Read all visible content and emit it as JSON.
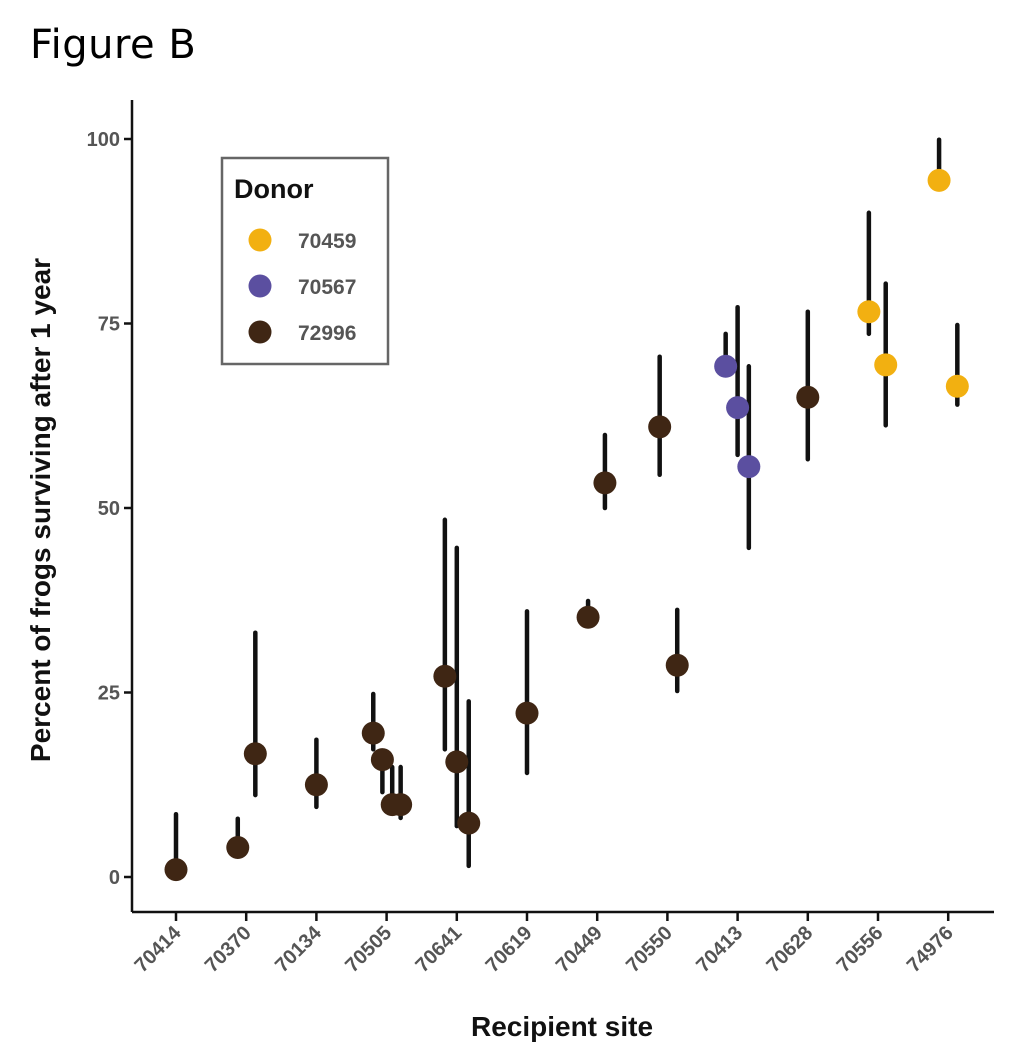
{
  "figure_title": "Figure B",
  "colors": {
    "70459": "#F2B011",
    "70567": "#5B4FA0",
    "72996": "#3F2614",
    "errorbar": "#111111",
    "axis": "#111111"
  },
  "chart_data": {
    "type": "scatter",
    "title": "Figure B",
    "xlabel": "Recipient site",
    "ylabel": "Percent of frogs surviving after 1 year",
    "categories": [
      "70414",
      "70370",
      "70134",
      "70505",
      "70641",
      "70619",
      "70449",
      "70550",
      "70413",
      "70628",
      "70556",
      "74976"
    ],
    "ylim": [
      -5,
      105
    ],
    "yticks": [
      0,
      25,
      50,
      75,
      100
    ],
    "grid": false,
    "legend": {
      "title": "Donor",
      "placement": "top-left",
      "entries": [
        "70459",
        "70567",
        "72996"
      ]
    },
    "points": [
      {
        "site": "70414",
        "offset": 0.0,
        "donor": "72996",
        "value": 1.0,
        "low": 1.0,
        "high": 8.5
      },
      {
        "site": "70370",
        "offset": -0.12,
        "donor": "72996",
        "value": 4.0,
        "low": 4.0,
        "high": 7.9
      },
      {
        "site": "70370",
        "offset": 0.13,
        "donor": "72996",
        "value": 16.7,
        "low": 11.1,
        "high": 33.1
      },
      {
        "site": "70134",
        "offset": 0.0,
        "donor": "72996",
        "value": 12.5,
        "low": 9.5,
        "high": 18.6
      },
      {
        "site": "70505",
        "offset": -0.19,
        "donor": "72996",
        "value": 19.5,
        "low": 17.3,
        "high": 24.8
      },
      {
        "site": "70505",
        "offset": -0.06,
        "donor": "72996",
        "value": 15.9,
        "low": 11.5,
        "high": 15.9
      },
      {
        "site": "70505",
        "offset": 0.08,
        "donor": "72996",
        "value": 9.8,
        "low": 9.8,
        "high": 14.9
      },
      {
        "site": "70505",
        "offset": 0.2,
        "donor": "72996",
        "value": 9.8,
        "low": 8.0,
        "high": 14.9
      },
      {
        "site": "70641",
        "offset": -0.17,
        "donor": "72996",
        "value": 27.2,
        "low": 17.3,
        "high": 48.4
      },
      {
        "site": "70641",
        "offset": 0.0,
        "donor": "72996",
        "value": 15.6,
        "low": 6.9,
        "high": 44.6
      },
      {
        "site": "70641",
        "offset": 0.17,
        "donor": "72996",
        "value": 7.3,
        "low": 1.5,
        "high": 23.8
      },
      {
        "site": "70619",
        "offset": 0.0,
        "donor": "72996",
        "value": 22.2,
        "low": 14.1,
        "high": 36.0
      },
      {
        "site": "70449",
        "offset": -0.13,
        "donor": "72996",
        "value": 35.2,
        "low": 35.2,
        "high": 37.4
      },
      {
        "site": "70449",
        "offset": 0.11,
        "donor": "72996",
        "value": 53.4,
        "low": 50.0,
        "high": 59.9
      },
      {
        "site": "70550",
        "offset": -0.11,
        "donor": "72996",
        "value": 61.0,
        "low": 54.5,
        "high": 70.5
      },
      {
        "site": "70550",
        "offset": 0.14,
        "donor": "72996",
        "value": 28.7,
        "low": 25.2,
        "high": 36.2
      },
      {
        "site": "70413",
        "offset": -0.17,
        "donor": "70567",
        "value": 69.2,
        "low": 69.2,
        "high": 73.6
      },
      {
        "site": "70413",
        "offset": 0.0,
        "donor": "70567",
        "value": 63.6,
        "low": 57.2,
        "high": 77.2
      },
      {
        "site": "70413",
        "offset": 0.16,
        "donor": "70567",
        "value": 55.6,
        "low": 44.6,
        "high": 69.2
      },
      {
        "site": "70628",
        "offset": 0.0,
        "donor": "72996",
        "value": 65.0,
        "low": 56.6,
        "high": 76.6
      },
      {
        "site": "70556",
        "offset": -0.13,
        "donor": "70459",
        "value": 76.6,
        "low": 73.6,
        "high": 90.0
      },
      {
        "site": "70556",
        "offset": 0.11,
        "donor": "70459",
        "value": 69.4,
        "low": 61.2,
        "high": 80.4
      },
      {
        "site": "74976",
        "offset": -0.13,
        "donor": "70459",
        "value": 94.4,
        "low": 94.4,
        "high": 99.9
      },
      {
        "site": "74976",
        "offset": 0.13,
        "donor": "70459",
        "value": 66.5,
        "low": 64.0,
        "high": 74.8
      }
    ]
  }
}
